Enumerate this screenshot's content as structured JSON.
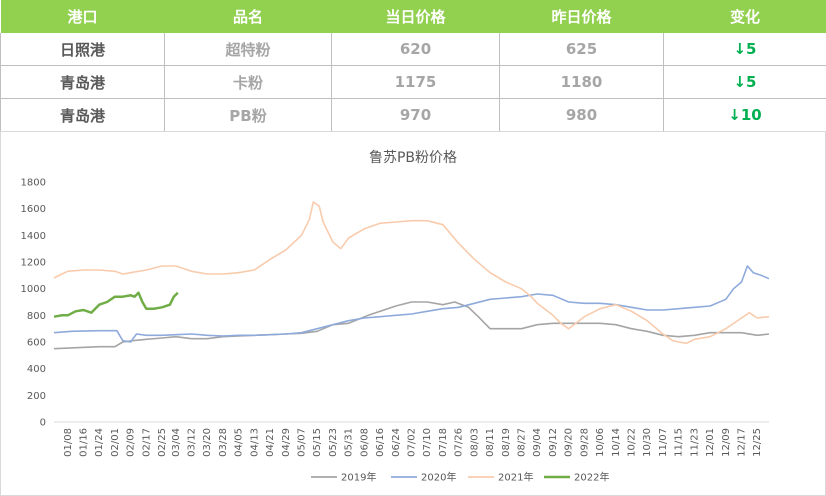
{
  "table": {
    "headers": [
      "港口",
      "品名",
      "当日价格",
      "昨日价格",
      "变化"
    ],
    "rows": [
      {
        "port": "日照港",
        "product": "超特粉",
        "today": "620",
        "yesterday": "625",
        "change": "↓5"
      },
      {
        "port": "青岛港",
        "product": "卡粉",
        "today": "1175",
        "yesterday": "1180",
        "change": "↓5"
      },
      {
        "port": "青岛港",
        "product": "PB粉",
        "today": "970",
        "yesterday": "980",
        "change": "↓10"
      }
    ]
  },
  "chart_data": {
    "type": "line",
    "title": "鲁苏PB粉价格",
    "xlabel": "",
    "ylabel": "",
    "ylim": [
      0,
      1800
    ],
    "yticks": [
      0,
      200,
      400,
      600,
      800,
      1000,
      1200,
      1400,
      1600,
      1800
    ],
    "x_tick_labels": [
      "01/08",
      "01/16",
      "01/24",
      "02/01",
      "02/09",
      "02/17",
      "02/25",
      "03/04",
      "03/12",
      "03/20",
      "03/28",
      "04/05",
      "04/13",
      "04/21",
      "04/29",
      "05/07",
      "05/15",
      "05/23",
      "05/31",
      "06/08",
      "06/16",
      "06/24",
      "07/02",
      "07/10",
      "07/18",
      "07/26",
      "08/03",
      "08/11",
      "08/19",
      "08/27",
      "09/04",
      "09/12",
      "09/20",
      "09/28",
      "10/06",
      "10/14",
      "10/22",
      "10/30",
      "11/07",
      "11/15",
      "11/23",
      "12/01",
      "12/09",
      "12/17",
      "12/25"
    ],
    "grid": false,
    "legend_position": "bottom",
    "series": [
      {
        "name": "2019年",
        "color": "#a5a5a5",
        "points": [
          [
            "01/01",
            550
          ],
          [
            "01/24",
            565
          ],
          [
            "02/01",
            565
          ],
          [
            "02/05",
            600
          ],
          [
            "02/10",
            610
          ],
          [
            "02/17",
            620
          ],
          [
            "02/25",
            630
          ],
          [
            "03/04",
            640
          ],
          [
            "03/12",
            625
          ],
          [
            "03/20",
            625
          ],
          [
            "03/28",
            640
          ],
          [
            "04/05",
            645
          ],
          [
            "04/13",
            650
          ],
          [
            "04/21",
            655
          ],
          [
            "04/29",
            660
          ],
          [
            "05/07",
            665
          ],
          [
            "05/15",
            680
          ],
          [
            "05/23",
            730
          ],
          [
            "05/31",
            740
          ],
          [
            "06/05",
            770
          ],
          [
            "06/10",
            800
          ],
          [
            "06/16",
            830
          ],
          [
            "06/24",
            870
          ],
          [
            "07/02",
            900
          ],
          [
            "07/10",
            900
          ],
          [
            "07/18",
            880
          ],
          [
            "07/24",
            900
          ],
          [
            "07/31",
            860
          ],
          [
            "08/05",
            790
          ],
          [
            "08/11",
            700
          ],
          [
            "08/19",
            700
          ],
          [
            "08/27",
            700
          ],
          [
            "09/04",
            730
          ],
          [
            "09/12",
            740
          ],
          [
            "09/20",
            740
          ],
          [
            "09/28",
            740
          ],
          [
            "10/06",
            740
          ],
          [
            "10/14",
            730
          ],
          [
            "10/22",
            700
          ],
          [
            "10/30",
            680
          ],
          [
            "11/07",
            650
          ],
          [
            "11/15",
            640
          ],
          [
            "11/23",
            650
          ],
          [
            "12/01",
            670
          ],
          [
            "12/09",
            670
          ],
          [
            "12/17",
            670
          ],
          [
            "12/25",
            650
          ],
          [
            "12/31",
            660
          ]
        ]
      },
      {
        "name": "2020年",
        "color": "#8eaadb",
        "points": [
          [
            "01/01",
            670
          ],
          [
            "01/10",
            680
          ],
          [
            "01/24",
            685
          ],
          [
            "02/02",
            685
          ],
          [
            "02/05",
            610
          ],
          [
            "02/09",
            600
          ],
          [
            "02/12",
            660
          ],
          [
            "02/17",
            650
          ],
          [
            "02/25",
            650
          ],
          [
            "03/04",
            655
          ],
          [
            "03/12",
            660
          ],
          [
            "03/20",
            650
          ],
          [
            "03/28",
            645
          ],
          [
            "04/05",
            650
          ],
          [
            "04/13",
            650
          ],
          [
            "04/21",
            655
          ],
          [
            "04/29",
            660
          ],
          [
            "05/07",
            670
          ],
          [
            "05/15",
            700
          ],
          [
            "05/23",
            730
          ],
          [
            "05/31",
            760
          ],
          [
            "06/08",
            780
          ],
          [
            "06/16",
            790
          ],
          [
            "06/24",
            800
          ],
          [
            "07/02",
            810
          ],
          [
            "07/10",
            830
          ],
          [
            "07/18",
            850
          ],
          [
            "07/26",
            860
          ],
          [
            "08/03",
            890
          ],
          [
            "08/11",
            920
          ],
          [
            "08/19",
            930
          ],
          [
            "08/27",
            940
          ],
          [
            "09/04",
            960
          ],
          [
            "09/12",
            950
          ],
          [
            "09/20",
            900
          ],
          [
            "09/28",
            890
          ],
          [
            "10/06",
            890
          ],
          [
            "10/14",
            880
          ],
          [
            "10/22",
            860
          ],
          [
            "10/30",
            840
          ],
          [
            "11/07",
            840
          ],
          [
            "11/15",
            850
          ],
          [
            "11/23",
            860
          ],
          [
            "12/01",
            870
          ],
          [
            "12/09",
            920
          ],
          [
            "12/13",
            1000
          ],
          [
            "12/17",
            1050
          ],
          [
            "12/20",
            1170
          ],
          [
            "12/23",
            1120
          ],
          [
            "12/27",
            1100
          ],
          [
            "12/31",
            1075
          ]
        ]
      },
      {
        "name": "2021年",
        "color": "#f8cbad",
        "points": [
          [
            "01/01",
            1080
          ],
          [
            "01/05",
            1110
          ],
          [
            "01/08",
            1130
          ],
          [
            "01/16",
            1140
          ],
          [
            "01/24",
            1140
          ],
          [
            "02/01",
            1130
          ],
          [
            "02/05",
            1110
          ],
          [
            "02/09",
            1120
          ],
          [
            "02/17",
            1140
          ],
          [
            "02/25",
            1170
          ],
          [
            "03/04",
            1170
          ],
          [
            "03/12",
            1130
          ],
          [
            "03/20",
            1110
          ],
          [
            "03/28",
            1110
          ],
          [
            "04/05",
            1120
          ],
          [
            "04/13",
            1140
          ],
          [
            "04/21",
            1220
          ],
          [
            "04/29",
            1290
          ],
          [
            "05/07",
            1400
          ],
          [
            "05/11",
            1520
          ],
          [
            "05/13",
            1650
          ],
          [
            "05/16",
            1620
          ],
          [
            "05/18",
            1500
          ],
          [
            "05/23",
            1350
          ],
          [
            "05/27",
            1300
          ],
          [
            "05/31",
            1380
          ],
          [
            "06/08",
            1450
          ],
          [
            "06/16",
            1490
          ],
          [
            "06/24",
            1500
          ],
          [
            "07/02",
            1510
          ],
          [
            "07/10",
            1510
          ],
          [
            "07/18",
            1480
          ],
          [
            "07/26",
            1340
          ],
          [
            "08/03",
            1220
          ],
          [
            "08/11",
            1120
          ],
          [
            "08/19",
            1050
          ],
          [
            "08/27",
            1000
          ],
          [
            "09/01",
            940
          ],
          [
            "09/04",
            890
          ],
          [
            "09/12",
            800
          ],
          [
            "09/16",
            740
          ],
          [
            "09/20",
            700
          ],
          [
            "09/28",
            790
          ],
          [
            "10/06",
            850
          ],
          [
            "10/14",
            880
          ],
          [
            "10/22",
            830
          ],
          [
            "10/30",
            760
          ],
          [
            "11/07",
            660
          ],
          [
            "11/12",
            610
          ],
          [
            "11/15",
            600
          ],
          [
            "11/19",
            590
          ],
          [
            "11/23",
            620
          ],
          [
            "12/01",
            640
          ],
          [
            "12/09",
            700
          ],
          [
            "12/17",
            780
          ],
          [
            "12/21",
            820
          ],
          [
            "12/25",
            780
          ],
          [
            "12/31",
            790
          ]
        ]
      },
      {
        "name": "2022年",
        "color": "#70ad47",
        "points": [
          [
            "01/01",
            790
          ],
          [
            "01/05",
            800
          ],
          [
            "01/08",
            800
          ],
          [
            "01/12",
            830
          ],
          [
            "01/16",
            840
          ],
          [
            "01/20",
            820
          ],
          [
            "01/24",
            880
          ],
          [
            "01/28",
            900
          ],
          [
            "02/01",
            940
          ],
          [
            "02/05",
            940
          ],
          [
            "02/09",
            950
          ],
          [
            "02/11",
            940
          ],
          [
            "02/13",
            970
          ],
          [
            "02/15",
            900
          ],
          [
            "02/17",
            850
          ],
          [
            "02/21",
            850
          ],
          [
            "02/25",
            860
          ],
          [
            "03/01",
            880
          ],
          [
            "03/03",
            940
          ],
          [
            "03/05",
            970
          ]
        ]
      }
    ]
  }
}
